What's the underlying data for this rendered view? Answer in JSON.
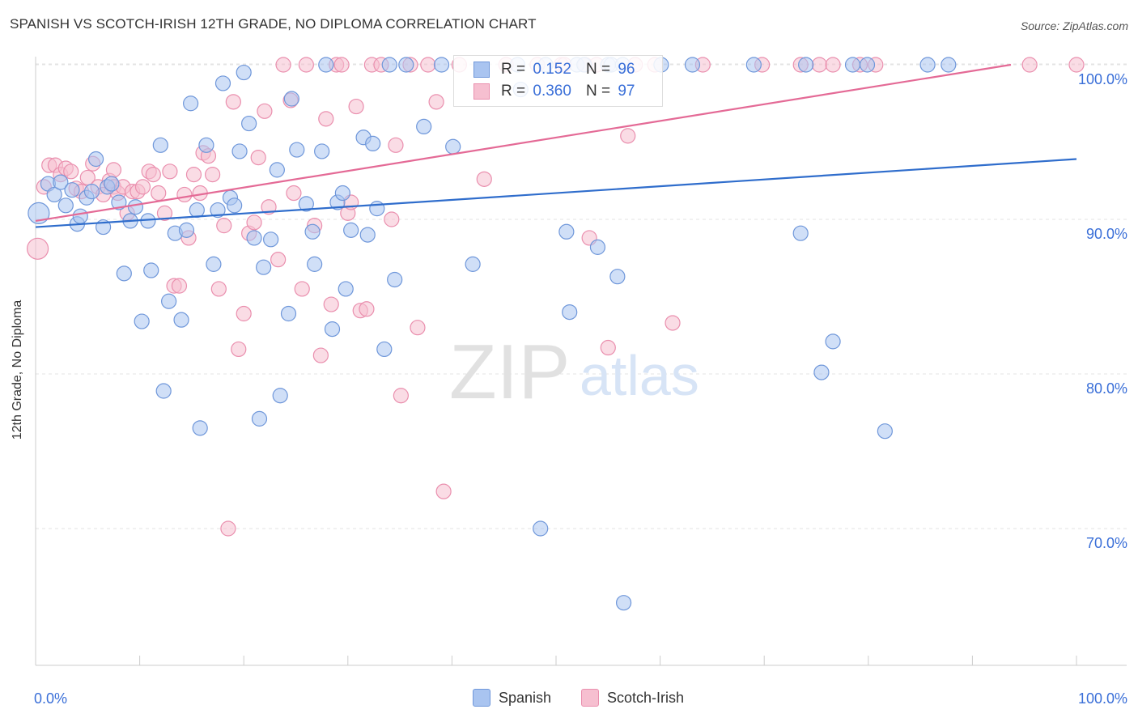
{
  "title": "SPANISH VS SCOTCH-IRISH 12TH GRADE, NO DIPLOMA CORRELATION CHART",
  "source": "Source: ZipAtlas.com",
  "watermark": {
    "zip": "ZIP",
    "atlas": "atlas"
  },
  "colors": {
    "spanish_fill": "#a9c4f0",
    "spanish_stroke": "#6f97da",
    "spanish_line": "#2f6dcc",
    "scotch_fill": "#f6bfd0",
    "scotch_stroke": "#ea8fae",
    "scotch_line": "#e46a96",
    "value_text": "#3a6fd8"
  },
  "legend": {
    "rows": [
      {
        "r_label": "R =",
        "r_value": "0.152",
        "n_label": "N =",
        "n_value": "96"
      },
      {
        "r_label": "R =",
        "r_value": "0.360",
        "n_label": "N =",
        "n_value": "97"
      }
    ],
    "bottom": [
      "Spanish",
      "Scotch-Irish"
    ]
  },
  "chart_data": {
    "type": "scatter",
    "title": "SPANISH VS SCOTCH-IRISH 12TH GRADE, NO DIPLOMA CORRELATION CHART",
    "xlabel": "",
    "ylabel": "12th Grade, No Diploma",
    "xlim": [
      0,
      100
    ],
    "ylim": [
      60.5,
      101.5
    ],
    "x_tick_labels": [
      "0.0%",
      "100.0%"
    ],
    "y_ticks": [
      70,
      80,
      90,
      100
    ],
    "y_tick_labels": [
      "70.0%",
      "80.0%",
      "90.0%",
      "100.0%"
    ],
    "grid": true,
    "legend_position": "top-center",
    "series": [
      {
        "name": "Spanish",
        "trend": {
          "x": [
            0,
            100
          ],
          "y": [
            89.5,
            93.9
          ]
        },
        "points": [
          [
            0.3,
            90.4
          ],
          [
            1.2,
            92.3
          ],
          [
            1.8,
            91.6
          ],
          [
            2.4,
            92.4
          ],
          [
            2.9,
            90.9
          ],
          [
            3.5,
            91.9
          ],
          [
            4.0,
            89.7
          ],
          [
            4.3,
            90.2
          ],
          [
            4.9,
            91.4
          ],
          [
            5.4,
            91.8
          ],
          [
            5.8,
            93.9
          ],
          [
            6.5,
            89.5
          ],
          [
            6.9,
            92.1
          ],
          [
            7.3,
            92.3
          ],
          [
            8.0,
            91.1
          ],
          [
            8.5,
            86.5
          ],
          [
            9.1,
            89.9
          ],
          [
            9.6,
            90.8
          ],
          [
            10.2,
            83.4
          ],
          [
            10.8,
            89.9
          ],
          [
            11.1,
            86.7
          ],
          [
            12.0,
            94.8
          ],
          [
            12.3,
            78.9
          ],
          [
            12.8,
            84.7
          ],
          [
            13.4,
            89.1
          ],
          [
            14.0,
            83.5
          ],
          [
            14.5,
            89.3
          ],
          [
            14.9,
            97.5
          ],
          [
            15.5,
            90.6
          ],
          [
            15.8,
            76.5
          ],
          [
            16.4,
            94.8
          ],
          [
            17.1,
            87.1
          ],
          [
            17.5,
            90.6
          ],
          [
            18.0,
            98.8
          ],
          [
            18.7,
            91.4
          ],
          [
            19.1,
            90.9
          ],
          [
            19.6,
            94.4
          ],
          [
            20.0,
            99.5
          ],
          [
            20.5,
            96.2
          ],
          [
            21.0,
            88.8
          ],
          [
            21.5,
            77.1
          ],
          [
            21.9,
            86.9
          ],
          [
            22.6,
            88.7
          ],
          [
            23.2,
            93.2
          ],
          [
            23.5,
            78.6
          ],
          [
            24.3,
            83.9
          ],
          [
            24.6,
            97.8
          ],
          [
            25.1,
            94.5
          ],
          [
            26.0,
            91.0
          ],
          [
            26.6,
            89.2
          ],
          [
            26.8,
            87.1
          ],
          [
            27.5,
            94.4
          ],
          [
            27.9,
            100.0
          ],
          [
            28.5,
            82.9
          ],
          [
            29.0,
            91.1
          ],
          [
            29.5,
            91.7
          ],
          [
            29.8,
            85.5
          ],
          [
            30.3,
            89.3
          ],
          [
            31.5,
            95.3
          ],
          [
            31.9,
            89.0
          ],
          [
            32.4,
            94.9
          ],
          [
            32.8,
            90.7
          ],
          [
            33.5,
            81.6
          ],
          [
            34.0,
            100.0
          ],
          [
            34.5,
            86.1
          ],
          [
            35.6,
            100.0
          ],
          [
            37.3,
            96.0
          ],
          [
            39.0,
            100.0
          ],
          [
            40.1,
            94.7
          ],
          [
            42.0,
            87.1
          ],
          [
            46.3,
            100.0
          ],
          [
            46.6,
            98.4
          ],
          [
            48.5,
            70.0
          ],
          [
            49.0,
            100.0
          ],
          [
            51.0,
            89.2
          ],
          [
            51.3,
            84.0
          ],
          [
            52.0,
            100.0
          ],
          [
            52.7,
            100.0
          ],
          [
            54.0,
            88.2
          ],
          [
            55.0,
            100.0
          ],
          [
            55.3,
            100.0
          ],
          [
            55.9,
            86.3
          ],
          [
            56.4,
            100.0
          ],
          [
            56.5,
            65.2
          ],
          [
            60.1,
            100.0
          ],
          [
            63.1,
            100.0
          ],
          [
            69.0,
            100.0
          ],
          [
            73.5,
            89.1
          ],
          [
            74.0,
            100.0
          ],
          [
            75.5,
            80.1
          ],
          [
            76.6,
            82.1
          ],
          [
            78.5,
            100.0
          ],
          [
            79.9,
            100.0
          ],
          [
            81.6,
            76.3
          ],
          [
            85.7,
            100.0
          ],
          [
            87.7,
            100.0
          ]
        ]
      },
      {
        "name": "Scotch-Irish",
        "trend": {
          "x": [
            0,
            93.7
          ],
          "y": [
            89.9,
            100.0
          ]
        },
        "points": [
          [
            0.2,
            88.1
          ],
          [
            0.8,
            92.1
          ],
          [
            1.3,
            93.5
          ],
          [
            1.9,
            93.5
          ],
          [
            2.4,
            92.9
          ],
          [
            2.9,
            93.3
          ],
          [
            3.4,
            93.1
          ],
          [
            3.9,
            92.0
          ],
          [
            4.4,
            91.8
          ],
          [
            5.0,
            92.7
          ],
          [
            5.5,
            93.6
          ],
          [
            6.0,
            92.1
          ],
          [
            6.5,
            91.6
          ],
          [
            7.1,
            92.5
          ],
          [
            7.5,
            92.1
          ],
          [
            7.5,
            93.2
          ],
          [
            7.9,
            91.7
          ],
          [
            8.4,
            92.1
          ],
          [
            8.8,
            90.4
          ],
          [
            9.3,
            91.8
          ],
          [
            9.8,
            91.8
          ],
          [
            10.3,
            92.1
          ],
          [
            10.9,
            93.1
          ],
          [
            11.3,
            92.9
          ],
          [
            11.8,
            91.7
          ],
          [
            12.4,
            90.4
          ],
          [
            12.9,
            93.1
          ],
          [
            13.3,
            85.7
          ],
          [
            13.8,
            85.7
          ],
          [
            14.3,
            91.6
          ],
          [
            14.7,
            88.8
          ],
          [
            15.2,
            92.9
          ],
          [
            15.8,
            91.7
          ],
          [
            16.1,
            94.3
          ],
          [
            16.6,
            94.1
          ],
          [
            17.0,
            92.9
          ],
          [
            17.6,
            85.5
          ],
          [
            18.1,
            89.6
          ],
          [
            18.5,
            70.0
          ],
          [
            19.0,
            97.6
          ],
          [
            19.5,
            81.6
          ],
          [
            20.0,
            83.9
          ],
          [
            20.5,
            89.1
          ],
          [
            21.0,
            89.8
          ],
          [
            21.4,
            94.0
          ],
          [
            22.0,
            97.0
          ],
          [
            22.4,
            90.8
          ],
          [
            23.3,
            87.4
          ],
          [
            23.8,
            100.0
          ],
          [
            24.5,
            97.7
          ],
          [
            24.8,
            91.7
          ],
          [
            25.6,
            85.5
          ],
          [
            26.0,
            100.0
          ],
          [
            26.8,
            89.6
          ],
          [
            27.4,
            81.2
          ],
          [
            27.9,
            96.5
          ],
          [
            28.4,
            84.5
          ],
          [
            28.9,
            100.0
          ],
          [
            29.4,
            100.0
          ],
          [
            30.0,
            90.4
          ],
          [
            30.3,
            91.1
          ],
          [
            30.8,
            97.3
          ],
          [
            31.2,
            84.1
          ],
          [
            31.8,
            84.2
          ],
          [
            32.3,
            100.0
          ],
          [
            33.2,
            100.0
          ],
          [
            34.2,
            90.0
          ],
          [
            34.6,
            94.8
          ],
          [
            35.1,
            78.6
          ],
          [
            36.0,
            100.0
          ],
          [
            36.7,
            83.0
          ],
          [
            37.7,
            100.0
          ],
          [
            38.5,
            97.6
          ],
          [
            39.2,
            72.4
          ],
          [
            40.7,
            100.0
          ],
          [
            43.1,
            92.6
          ],
          [
            45.2,
            100.0
          ],
          [
            48.2,
            100.0
          ],
          [
            50.5,
            100.0
          ],
          [
            50.8,
            100.0
          ],
          [
            53.2,
            88.8
          ],
          [
            52.8,
            100.0
          ],
          [
            53.9,
            100.0
          ],
          [
            55.0,
            81.7
          ],
          [
            56.9,
            95.4
          ],
          [
            57.6,
            100.0
          ],
          [
            59.5,
            100.0
          ],
          [
            61.2,
            83.3
          ],
          [
            64.1,
            100.0
          ],
          [
            69.8,
            100.0
          ],
          [
            73.5,
            100.0
          ],
          [
            75.3,
            100.0
          ],
          [
            76.6,
            100.0
          ],
          [
            79.2,
            100.0
          ],
          [
            80.7,
            100.0
          ],
          [
            95.5,
            100.0
          ],
          [
            100.0,
            100.0
          ]
        ]
      }
    ]
  }
}
